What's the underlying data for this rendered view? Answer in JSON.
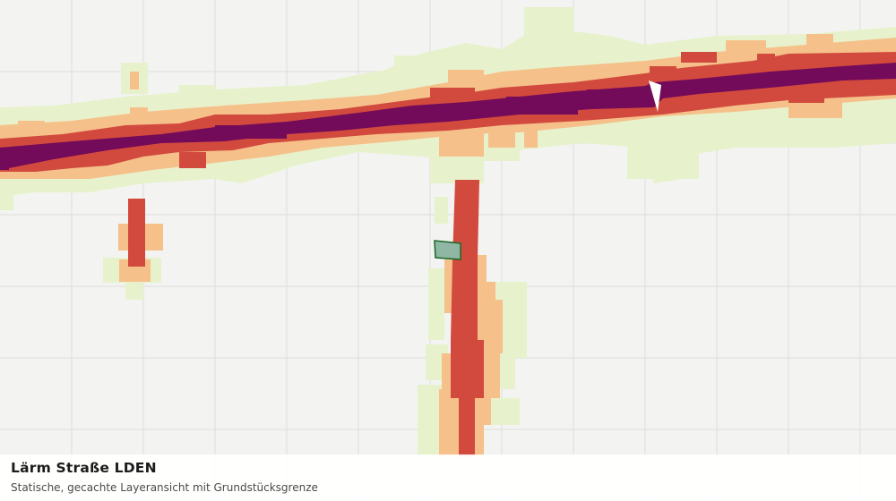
{
  "map": {
    "title": "Lärm Straße LDEN",
    "subtitle": "Statische, gecachte Layeransicht mit Grundstücksgrenze",
    "noise_classes": [
      {
        "id": "very-high",
        "color": "#730a5a"
      },
      {
        "id": "high",
        "color": "#d24a3e"
      },
      {
        "id": "medium",
        "color": "#f5c08a"
      },
      {
        "id": "low",
        "color": "#e7f2cc"
      }
    ],
    "background_color": "#f3f4f1",
    "grid_color": "#dcdedb",
    "parcel_fill": "#8fb7a3",
    "parcel_stroke": "#1f6a2d"
  }
}
